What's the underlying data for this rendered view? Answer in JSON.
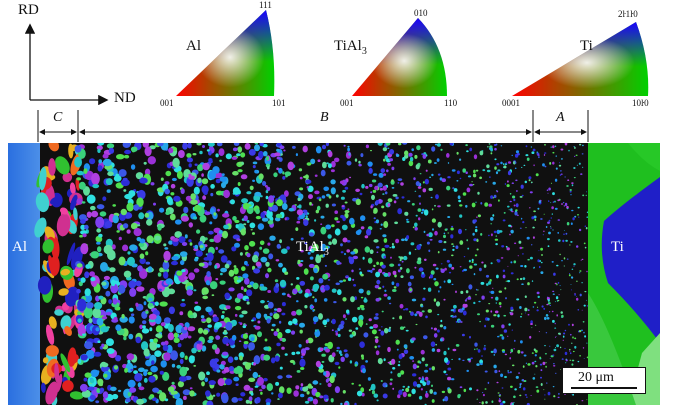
{
  "axes": {
    "vertical": "RD",
    "horizontal": "ND"
  },
  "legends": [
    {
      "phase": "Al",
      "corners": {
        "top": "111",
        "left": "001",
        "right": "101"
      }
    },
    {
      "phase": "TiAl3",
      "phase_base": "TiAl",
      "phase_sub": "3",
      "corners": {
        "top": "010",
        "left": "001",
        "right": "110"
      }
    },
    {
      "phase": "Ti",
      "corners": {
        "top": "2ŀ1ŀ0",
        "left": "0001",
        "right": "10ŀ0"
      }
    }
  ],
  "zones": {
    "c": "C",
    "b": "B",
    "a": "A"
  },
  "map_labels": {
    "al": "Al",
    "tial3_base": "TiAl",
    "tial3_sub": "3",
    "ti": "Ti"
  },
  "scale_bar": "20 μm"
}
